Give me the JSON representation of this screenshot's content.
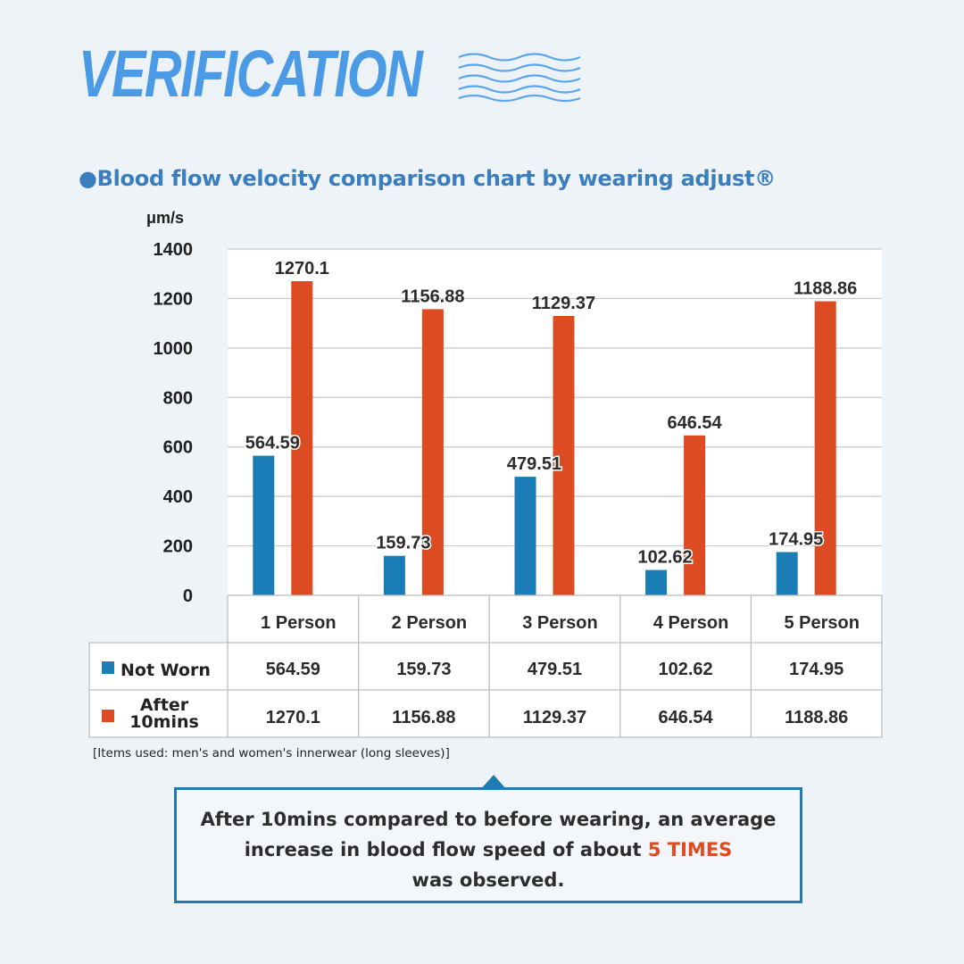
{
  "header": {
    "title": "VERIFICATION",
    "subtitle": "●Blood flow velocity comparison chart by wearing adjust®"
  },
  "colors": {
    "not_worn": "#1b7db5",
    "after": "#dc4b22",
    "heading": "#4a9ae6",
    "subtitle": "#3a7ebf",
    "highlight": "#e14a1e"
  },
  "chart_data": {
    "type": "bar",
    "y_unit": "μm/s",
    "ylim": [
      0,
      1400
    ],
    "yticks": [
      0,
      200,
      400,
      600,
      800,
      1000,
      1200,
      1400
    ],
    "grid": true,
    "categories": [
      "1 Person",
      "2 Person",
      "3 Person",
      "4 Person",
      "5 Person"
    ],
    "series": [
      {
        "name": "Not Worn",
        "color": "#1b7db5",
        "values": [
          564.59,
          159.73,
          479.51,
          102.62,
          174.95
        ]
      },
      {
        "name": "After 10mins",
        "color": "#dc4b22",
        "values": [
          1270.1,
          1156.88,
          1129.37,
          646.54,
          1188.86
        ]
      }
    ],
    "data_labels": true,
    "data_table": true
  },
  "footnote": "[Items used: men's and women's innerwear (long sleeves)]",
  "callout": {
    "line1": "After 10mins compared to before wearing, an average",
    "line2_prefix": "increase in blood flow speed of about ",
    "line2_highlight": "5 TIMES",
    "line3": "was observed."
  }
}
